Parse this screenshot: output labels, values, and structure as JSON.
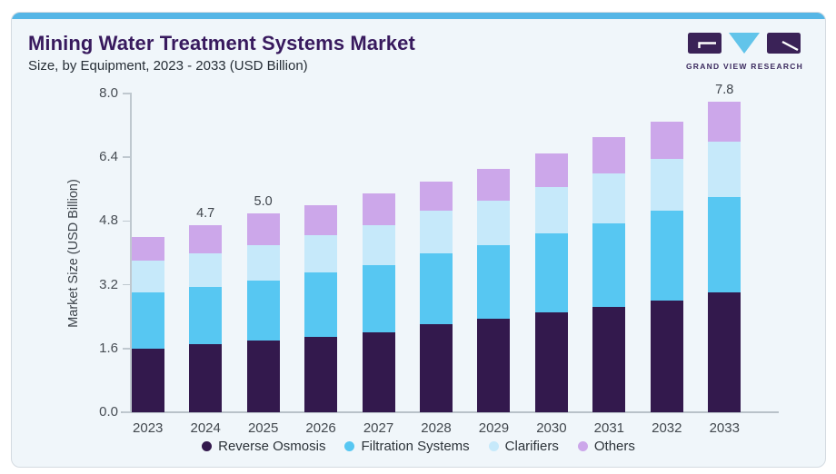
{
  "header": {
    "title": "Mining Water Treatment Systems Market",
    "subtitle": "Size, by Equipment, 2023 - 2033 (USD Billion)",
    "logo_caption": "GRAND VIEW RESEARCH"
  },
  "colors": {
    "accent_stripe": "#55b6e6",
    "brand_purple": "#381a5e",
    "logo_tile_purple": "#3a2257",
    "logo_triangle_cyan": "#62c4ea",
    "card_background": "#f0f6fa"
  },
  "chart_data": {
    "type": "bar",
    "stacked": true,
    "title": "Mining Water Treatment Systems Market Size, by Equipment, 2023 - 2033 (USD Billion)",
    "xlabel": "",
    "ylabel": "Market Size (USD Billion)",
    "ylim": [
      0,
      8
    ],
    "yticks": [
      "0.0",
      "1.6",
      "3.2",
      "4.8",
      "6.4",
      "8.0"
    ],
    "grid": false,
    "legend_position": "bottom",
    "categories": [
      "2023",
      "2024",
      "2025",
      "2026",
      "2027",
      "2028",
      "2029",
      "2030",
      "2031",
      "2032",
      "2033"
    ],
    "series": [
      {
        "name": "Reverse Osmosis",
        "color": "#33194d",
        "values": [
          1.6,
          1.7,
          1.8,
          1.9,
          2.0,
          2.2,
          2.35,
          2.5,
          2.65,
          2.8,
          3.0
        ]
      },
      {
        "name": "Filtration Systems",
        "color": "#57c7f2",
        "values": [
          1.4,
          1.45,
          1.5,
          1.6,
          1.7,
          1.8,
          1.85,
          2.0,
          2.1,
          2.25,
          2.4
        ]
      },
      {
        "name": "Clarifiers",
        "color": "#c6e9fa",
        "values": [
          0.8,
          0.85,
          0.9,
          0.95,
          1.0,
          1.05,
          1.1,
          1.15,
          1.25,
          1.3,
          1.4
        ]
      },
      {
        "name": "Others",
        "color": "#cca7ea",
        "values": [
          0.6,
          0.7,
          0.8,
          0.75,
          0.8,
          0.75,
          0.8,
          0.85,
          0.9,
          0.95,
          1.0
        ]
      }
    ],
    "totals": [
      4.4,
      4.7,
      5.0,
      5.2,
      5.5,
      5.8,
      6.1,
      6.5,
      6.9,
      7.3,
      7.8
    ],
    "bar_labels": [
      "",
      "4.7",
      "5.0",
      "",
      "",
      "",
      "",
      "",
      "",
      "",
      "7.8"
    ]
  }
}
